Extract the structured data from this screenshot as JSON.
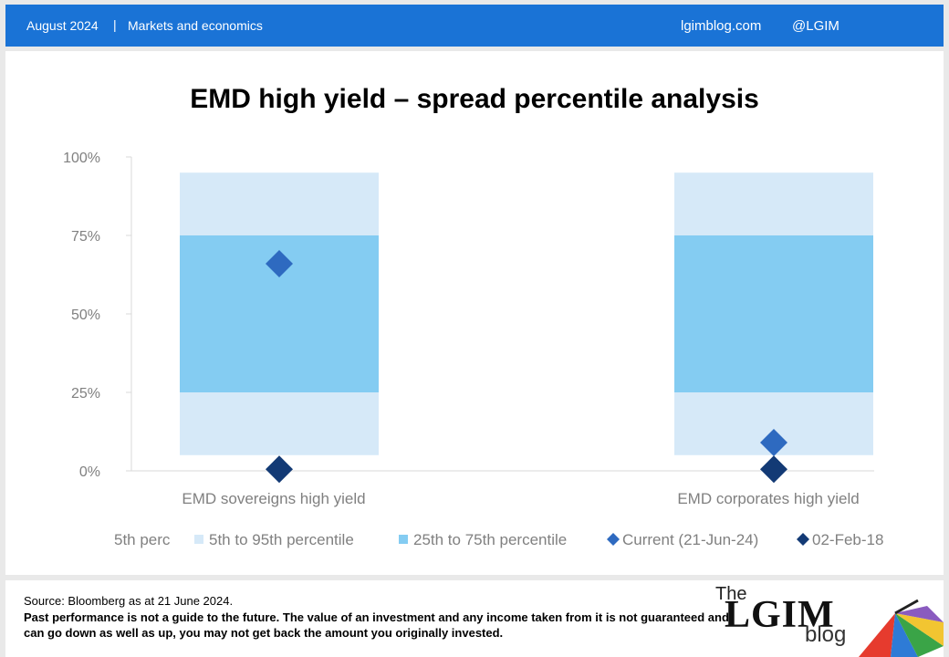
{
  "header": {
    "date": "August 2024",
    "separator": "|",
    "section": "Markets and economics",
    "site": "lgimblog.com",
    "handle": "@LGIM"
  },
  "chart_data": {
    "type": "bar",
    "title": "EMD high yield – spread percentile analysis",
    "categories": [
      "EMD sovereigns high yield",
      "EMD corporates high yield"
    ],
    "y_ticks": [
      "100%",
      "75%",
      "50%",
      "25%",
      "0%"
    ],
    "ylim": [
      0,
      100
    ],
    "series": [
      {
        "name": "5th perc",
        "color": "#ffffff",
        "values": [
          5,
          5
        ]
      },
      {
        "name": "5th to 95th percentile",
        "color": "#d6e9f8",
        "range": [
          [
            5,
            95
          ],
          [
            5,
            95
          ]
        ]
      },
      {
        "name": "25th to 75th percentile",
        "color": "#84ccf2",
        "range": [
          [
            25,
            75
          ],
          [
            25,
            75
          ]
        ]
      },
      {
        "name": "Current (21-Jun-24)",
        "color": "#2e6ac0",
        "values": [
          66,
          9
        ]
      },
      {
        "name": "02-Feb-18",
        "color": "#133a75",
        "values": [
          0.5,
          0.5
        ]
      }
    ],
    "legend_position": "bottom",
    "grid": false
  },
  "footer": {
    "source": "Source: Bloomberg as at 21 June 2024.",
    "disclaimer": "Past performance is not a guide to the future. The value of an investment and any income taken from it is not guaranteed and can go down as well as up, you may  not get back the amount you originally invested.",
    "logo_the": "The",
    "logo_main": "LGIM",
    "logo_blog": "blog"
  }
}
